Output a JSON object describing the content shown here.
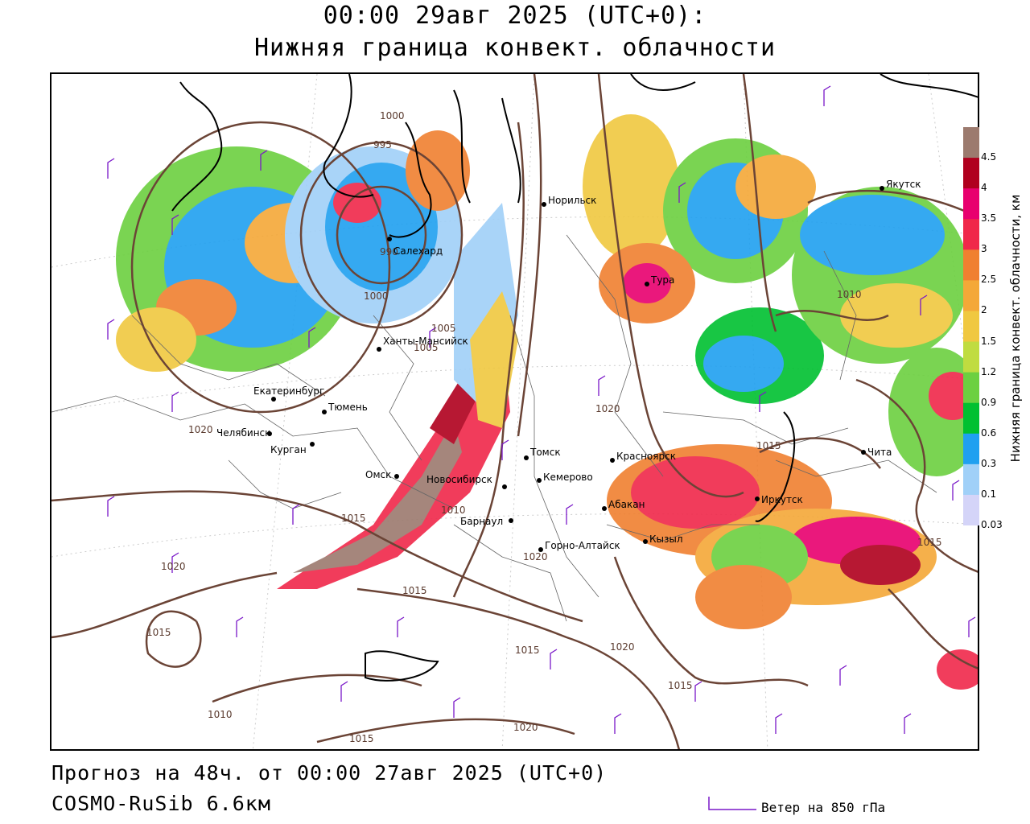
{
  "title": {
    "line1": "00:00 29авг 2025 (UTC+0):",
    "line2": "Нижняя граница конвект. облачности"
  },
  "legend": {
    "title": "Нижняя граница конвект. облачности, км",
    "ticks": [
      "4.5",
      "4",
      "3.5",
      "3",
      "2.5",
      "2",
      "1.5",
      "1.2",
      "0.9",
      "0.6",
      "0.3",
      "0.1",
      "0.03"
    ],
    "colors": [
      "#9c7a6e",
      "#b0001e",
      "#e8006e",
      "#f0284a",
      "#f08030",
      "#f4a838",
      "#f0c840",
      "#c0dc40",
      "#6cd040",
      "#00c030",
      "#20a0f0",
      "#a0d0f8",
      "#d4d4f8"
    ]
  },
  "cities": [
    {
      "name": "Норильск"
    },
    {
      "name": "Якутск"
    },
    {
      "name": "Тура"
    },
    {
      "name": "Салехард"
    },
    {
      "name": "Ханты-Мансийск"
    },
    {
      "name": "Екатеринбург"
    },
    {
      "name": "Тюмень"
    },
    {
      "name": "Челябинск"
    },
    {
      "name": "Курган"
    },
    {
      "name": "Омск"
    },
    {
      "name": "Новосибирск"
    },
    {
      "name": "Томск"
    },
    {
      "name": "Кемерово"
    },
    {
      "name": "Барнаул"
    },
    {
      "name": "Горно-Алтайск"
    },
    {
      "name": "Красноярск"
    },
    {
      "name": "Абакан"
    },
    {
      "name": "Кызыл"
    },
    {
      "name": "Иркутск"
    },
    {
      "name": "Чита"
    }
  ],
  "isobar_labels": [
    "1000",
    "995",
    "990",
    "1000",
    "1005",
    "1005",
    "1020",
    "1015",
    "1010",
    "1020",
    "1015",
    "1015",
    "1020",
    "1010",
    "1015",
    "1020",
    "1020",
    "1015",
    "1015",
    "1015",
    "1010",
    "1015",
    "1020"
  ],
  "footer": {
    "forecast": "Прогноз на 48ч. от 00:00 27авг 2025 (UTC+0)",
    "model": "COSMO-RuSib 6.6км",
    "wind_legend": "Ветер на 850 гПа"
  },
  "colors": {
    "isobar": "#6b4436",
    "coast": "#000000",
    "border": "#555555",
    "wind": "#7a18c8"
  }
}
